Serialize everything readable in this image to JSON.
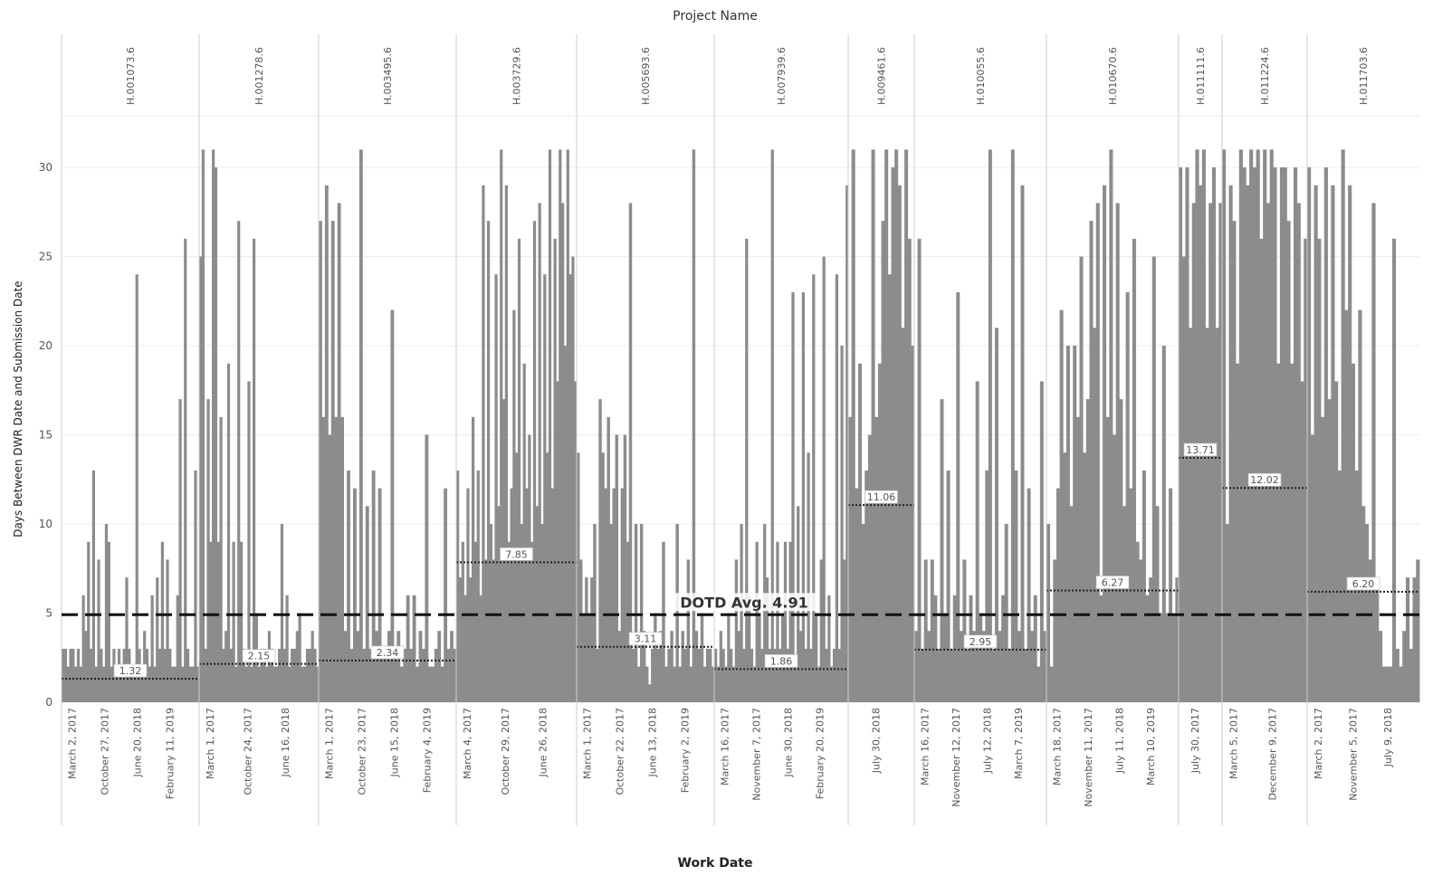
{
  "colors": {
    "bar": "#8c8c8c",
    "avg_line": "#222222",
    "dotd_line": "#111111",
    "grid": "#ececec",
    "divider": "#cfcfcf"
  },
  "chart_data": {
    "type": "bar",
    "title": "Project Name",
    "xlabel": "Work Date",
    "ylabel": "Days Between DWR Date and Submission Date",
    "ylim": [
      0,
      31
    ],
    "yticks": [
      0,
      5,
      10,
      15,
      20,
      25,
      30
    ],
    "grid": true,
    "reference_line": {
      "label": "DOTD Avg. 4.91",
      "value": 4.91
    },
    "projects": [
      {
        "name": "H.001073.6",
        "avg": 1.32,
        "avg_label": "1.32",
        "ticks": [
          "March 2, 2017",
          "October 27, 2017",
          "June 20, 2018",
          "February 11, 2019"
        ],
        "values": [
          3,
          3,
          2,
          3,
          3,
          2,
          3,
          2,
          6,
          4,
          9,
          3,
          13,
          2,
          8,
          3,
          2,
          10,
          9,
          2,
          3,
          2,
          3,
          2,
          3,
          7,
          3,
          2,
          2,
          24,
          3,
          2,
          4,
          3,
          2,
          6,
          2,
          7,
          3,
          9,
          3,
          8,
          3,
          2,
          2,
          6,
          17,
          2,
          26,
          3,
          2,
          2,
          13,
          2
        ]
      },
      {
        "name": "H.001278.6",
        "avg": 2.15,
        "avg_label": "2.15",
        "ticks": [
          "March 1, 2017",
          "October 24, 2017",
          "June 16, 2018"
        ],
        "values": [
          25,
          31,
          3,
          17,
          9,
          31,
          30,
          9,
          16,
          3,
          4,
          19,
          3,
          9,
          2,
          27,
          9,
          3,
          2,
          18,
          2,
          26,
          5,
          2,
          3,
          3,
          2,
          4,
          3,
          2,
          2,
          3,
          10,
          3,
          6,
          2,
          3,
          3,
          4,
          5,
          2,
          2,
          3,
          3,
          4,
          3,
          2
        ]
      },
      {
        "name": "H.003495.6",
        "avg": 2.34,
        "avg_label": "2.34",
        "ticks": [
          "March 1, 2017",
          "October 23, 2017",
          "June 15, 2018",
          "February 4, 2019"
        ],
        "values": [
          27,
          16,
          29,
          15,
          27,
          16,
          28,
          16,
          4,
          13,
          3,
          12,
          4,
          31,
          3,
          11,
          3,
          13,
          4,
          12,
          3,
          3,
          4,
          22,
          3,
          4,
          2,
          3,
          6,
          3,
          6,
          2,
          4,
          3,
          15,
          2,
          2,
          3,
          4,
          2,
          12,
          3,
          4,
          3
        ]
      },
      {
        "name": "H.003729.6",
        "avg": 7.85,
        "avg_label": "7.85",
        "ticks": [
          "March 4, 2017",
          "October 29, 2017",
          "June 26, 2018"
        ],
        "values": [
          13,
          7,
          9,
          6,
          12,
          7,
          16,
          9,
          13,
          6,
          29,
          8,
          27,
          10,
          8,
          24,
          11,
          31,
          17,
          29,
          9,
          12,
          22,
          14,
          26,
          10,
          19,
          12,
          15,
          9,
          27,
          11,
          28,
          10,
          24,
          14,
          31,
          12,
          26,
          18,
          31,
          28,
          20,
          31,
          24,
          25,
          18
        ]
      },
      {
        "name": "H.005693.6",
        "avg": 3.11,
        "avg_label": "3.11",
        "ticks": [
          "March 1, 2017",
          "October 22, 2017",
          "June 13, 2018",
          "February 2, 2019"
        ],
        "values": [
          14,
          8,
          5,
          7,
          5,
          7,
          10,
          3,
          17,
          14,
          12,
          16,
          10,
          12,
          15,
          4,
          12,
          15,
          9,
          28,
          3,
          10,
          2,
          10,
          4,
          2,
          1,
          3,
          5,
          3,
          4,
          9,
          2,
          3,
          4,
          2,
          10,
          2,
          4,
          3,
          8,
          2,
          31,
          4,
          3,
          5,
          2,
          3,
          3,
          2
        ]
      },
      {
        "name": "H.007939.6",
        "avg": 1.86,
        "avg_label": "1.86",
        "ticks": [
          "March 16, 2017",
          "November 7, 2017",
          "June 30, 2018",
          "February 20, 2019"
        ],
        "values": [
          3,
          2,
          4,
          3,
          2,
          5,
          3,
          2,
          8,
          4,
          10,
          3,
          26,
          6,
          3,
          2,
          9,
          5,
          3,
          10,
          7,
          3,
          31,
          3,
          9,
          3,
          5,
          9,
          3,
          9,
          23,
          2,
          11,
          4,
          23,
          3,
          14,
          3,
          24,
          5,
          2,
          8,
          25,
          3,
          6,
          2,
          3,
          24,
          3,
          20,
          8,
          29
        ]
      },
      {
        "name": "H.009461.6",
        "avg": 11.06,
        "avg_label": "11.06",
        "ticks": [
          "July 30, 2018"
        ],
        "values": [
          16,
          31,
          12,
          19,
          10,
          13,
          15,
          31,
          16,
          19,
          27,
          31,
          24,
          30,
          31,
          29,
          21,
          31,
          26,
          20
        ]
      },
      {
        "name": "H.010055.6",
        "avg": 2.95,
        "avg_label": "2.95",
        "ticks": [
          "March 16, 2017",
          "November 12, 2017",
          "July 12, 2018",
          "March 7, 2019"
        ],
        "values": [
          4,
          26,
          3,
          8,
          4,
          8,
          6,
          3,
          17,
          5,
          13,
          3,
          6,
          23,
          4,
          8,
          3,
          6,
          4,
          18,
          5,
          4,
          13,
          31,
          3,
          21,
          4,
          6,
          10,
          3,
          31,
          13,
          4,
          29,
          3,
          12,
          4,
          6,
          2,
          18,
          4
        ]
      },
      {
        "name": "H.010670.6",
        "avg": 6.27,
        "avg_label": "6.27",
        "ticks": [
          "March 18, 2017",
          "November 11, 2017",
          "July 11, 2018",
          "March 10, 2019"
        ],
        "values": [
          10,
          2,
          8,
          12,
          22,
          14,
          20,
          11,
          20,
          16,
          25,
          14,
          17,
          27,
          21,
          28,
          6,
          29,
          16,
          31,
          15,
          28,
          17,
          11,
          23,
          12,
          26,
          9,
          8,
          13,
          6,
          7,
          25,
          11,
          5,
          20,
          5,
          12,
          5,
          7
        ]
      },
      {
        "name": "H.011111.6",
        "avg": 13.71,
        "avg_label": "13.71",
        "ticks": [
          "July 30, 2017"
        ],
        "values": [
          30,
          25,
          30,
          21,
          28,
          31,
          29,
          31,
          21,
          28,
          30,
          21,
          28
        ]
      },
      {
        "name": "H.011224.6",
        "avg": 12.02,
        "avg_label": "12.02",
        "ticks": [
          "March 5, 2017",
          "December 9, 2017"
        ],
        "values": [
          31,
          10,
          29,
          27,
          19,
          31,
          30,
          29,
          31,
          30,
          31,
          26,
          31,
          28,
          31,
          30,
          19,
          30,
          30,
          27,
          19,
          30,
          28,
          18,
          26
        ]
      },
      {
        "name": "H.011703.6",
        "avg": 6.2,
        "avg_label": "6.20",
        "ticks": [
          "March 2, 2017",
          "November 5, 2017",
          "July 9, 2018"
        ],
        "values": [
          30,
          15,
          29,
          26,
          16,
          30,
          17,
          29,
          18,
          13,
          31,
          22,
          29,
          19,
          13,
          22,
          11,
          10,
          8,
          28,
          7,
          4,
          2,
          2,
          2,
          26,
          3,
          2,
          4,
          7,
          3,
          7,
          8
        ]
      }
    ]
  }
}
